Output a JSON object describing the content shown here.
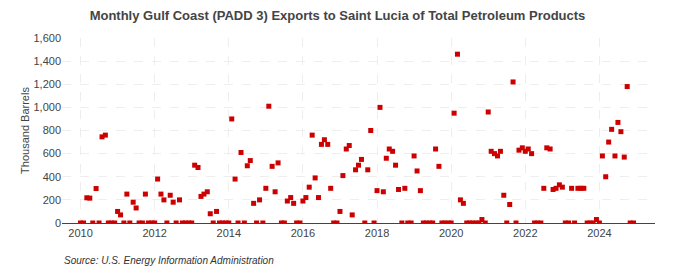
{
  "chart_data": {
    "type": "scatter",
    "title": "Monthly Gulf Coast (PADD 3) Exports to Saint Lucia of Total Petroleum Products",
    "ylabel": "Thousand Barrels",
    "annotations": [
      "Source: U.S. Energy Information Administration"
    ],
    "color": "#cc0000",
    "marker": "square",
    "grid": true,
    "xlim": [
      2009.5,
      2025.5
    ],
    "xticks": [
      2010,
      2012,
      2014,
      2016,
      2018,
      2020,
      2022,
      2024
    ],
    "ylim": [
      0,
      1600
    ],
    "yticks": [
      0,
      200,
      400,
      600,
      800,
      {
        "value": 1000,
        "label": "1,000"
      },
      {
        "value": 1200,
        "label": "1,200"
      },
      {
        "value": 1400,
        "label": "1,400"
      },
      {
        "value": 1600,
        "label": "1,600"
      }
    ],
    "x": [
      2010.0,
      2010.08,
      2010.17,
      2010.25,
      2010.33,
      2010.42,
      2010.5,
      2010.58,
      2010.67,
      2010.75,
      2010.83,
      2010.92,
      2011.0,
      2011.08,
      2011.17,
      2011.25,
      2011.33,
      2011.42,
      2011.5,
      2011.58,
      2011.67,
      2011.75,
      2011.83,
      2011.92,
      2012.0,
      2012.08,
      2012.17,
      2012.25,
      2012.33,
      2012.42,
      2012.5,
      2012.58,
      2012.67,
      2012.75,
      2012.83,
      2012.92,
      2013.0,
      2013.08,
      2013.17,
      2013.25,
      2013.33,
      2013.42,
      2013.5,
      2013.58,
      2013.67,
      2013.75,
      2013.83,
      2013.92,
      2014.0,
      2014.08,
      2014.17,
      2014.25,
      2014.33,
      2014.42,
      2014.5,
      2014.58,
      2014.67,
      2014.75,
      2014.83,
      2014.92,
      2015.0,
      2015.08,
      2015.17,
      2015.25,
      2015.33,
      2015.42,
      2015.5,
      2015.58,
      2015.67,
      2015.75,
      2015.83,
      2015.92,
      2016.0,
      2016.08,
      2016.17,
      2016.25,
      2016.33,
      2016.42,
      2016.5,
      2016.58,
      2016.67,
      2016.75,
      2016.83,
      2016.92,
      2017.0,
      2017.08,
      2017.17,
      2017.25,
      2017.33,
      2017.42,
      2017.5,
      2017.58,
      2017.67,
      2017.75,
      2017.83,
      2017.92,
      2018.0,
      2018.08,
      2018.17,
      2018.25,
      2018.33,
      2018.42,
      2018.5,
      2018.58,
      2018.67,
      2018.75,
      2018.83,
      2018.92,
      2019.0,
      2019.08,
      2019.17,
      2019.25,
      2019.33,
      2019.42,
      2019.5,
      2019.58,
      2019.67,
      2019.75,
      2019.83,
      2019.92,
      2020.0,
      2020.08,
      2020.17,
      2020.25,
      2020.33,
      2020.42,
      2020.5,
      2020.58,
      2020.67,
      2020.75,
      2020.83,
      2020.92,
      2021.0,
      2021.08,
      2021.17,
      2021.25,
      2021.33,
      2021.42,
      2021.5,
      2021.58,
      2021.67,
      2021.75,
      2021.83,
      2021.92,
      2022.0,
      2022.08,
      2022.17,
      2022.25,
      2022.33,
      2022.42,
      2022.5,
      2022.58,
      2022.67,
      2022.75,
      2022.83,
      2022.92,
      2023.0,
      2023.08,
      2023.17,
      2023.25,
      2023.33,
      2023.42,
      2023.5,
      2023.58,
      2023.67,
      2023.75,
      2023.83,
      2023.92,
      2024.0,
      2024.08,
      2024.17,
      2024.25,
      2024.33,
      2024.42,
      2024.5,
      2024.58,
      2024.67,
      2024.75,
      2024.83,
      2024.92
    ],
    "values": [
      0,
      0,
      218,
      215,
      0,
      298,
      0,
      745,
      760,
      0,
      0,
      0,
      100,
      70,
      0,
      250,
      0,
      180,
      130,
      0,
      0,
      250,
      0,
      0,
      0,
      380,
      250,
      200,
      0,
      240,
      180,
      0,
      200,
      0,
      0,
      0,
      0,
      500,
      480,
      230,
      250,
      270,
      80,
      0,
      100,
      0,
      0,
      0,
      0,
      900,
      380,
      0,
      610,
      0,
      495,
      540,
      170,
      0,
      200,
      0,
      300,
      1010,
      490,
      270,
      520,
      0,
      0,
      190,
      220,
      170,
      0,
      0,
      190,
      220,
      310,
      760,
      390,
      220,
      680,
      720,
      680,
      300,
      0,
      0,
      100,
      410,
      640,
      670,
      70,
      460,
      500,
      550,
      0,
      460,
      800,
      0,
      280,
      1000,
      270,
      560,
      640,
      620,
      500,
      290,
      0,
      300,
      0,
      0,
      580,
      450,
      280,
      0,
      0,
      0,
      0,
      640,
      490,
      0,
      0,
      0,
      0,
      950,
      1460,
      200,
      170,
      0,
      0,
      0,
      0,
      0,
      30,
      0,
      960,
      620,
      600,
      580,
      620,
      240,
      0,
      160,
      1220,
      0,
      630,
      650,
      620,
      640,
      600,
      0,
      0,
      0,
      300,
      650,
      640,
      290,
      300,
      330,
      310,
      0,
      0,
      300,
      0,
      300,
      300,
      300,
      0,
      0,
      0,
      30,
      0,
      580,
      400,
      700,
      810,
      580,
      870,
      790,
      570,
      1180,
      0,
      0
    ]
  }
}
